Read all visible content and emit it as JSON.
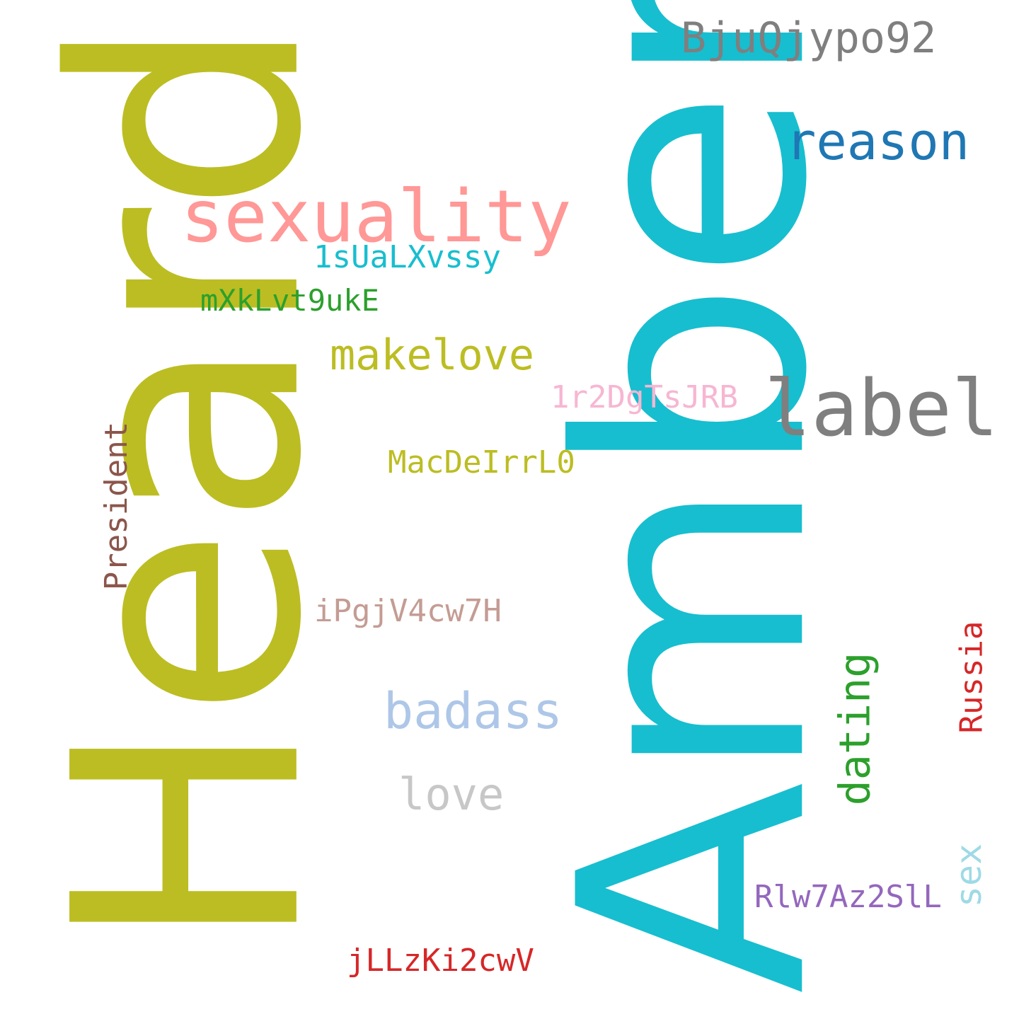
{
  "words": [
    {
      "id": "heard",
      "text": "Heard",
      "color": "#bcbd22",
      "orientation": "vertical"
    },
    {
      "id": "amber",
      "text": "Amber",
      "color": "#17becf",
      "orientation": "vertical"
    },
    {
      "id": "bjuqjypo92",
      "text": "BjuQjypo92",
      "color": "#7f7f7f",
      "orientation": "horizontal"
    },
    {
      "id": "reason",
      "text": "reason",
      "color": "#1f77b4",
      "orientation": "horizontal"
    },
    {
      "id": "sexuality",
      "text": "sexuality",
      "color": "#ff9896",
      "orientation": "horizontal"
    },
    {
      "id": "1suualxvssy",
      "text": "1sUaLXvssy",
      "color": "#17becf",
      "orientation": "horizontal"
    },
    {
      "id": "mxklvt9uke",
      "text": "mXkLvt9ukE",
      "color": "#2ca02c",
      "orientation": "horizontal"
    },
    {
      "id": "makelove",
      "text": "makelove",
      "color": "#bcbd22",
      "orientation": "horizontal"
    },
    {
      "id": "label",
      "text": "label",
      "color": "#7f7f7f",
      "orientation": "horizontal"
    },
    {
      "id": "1r2dgtsjrb",
      "text": "1r2DgTsJRB",
      "color": "#f7b6d2",
      "orientation": "horizontal"
    },
    {
      "id": "macdeirrl0",
      "text": "MacDeIrrL0",
      "color": "#bcbd22",
      "orientation": "horizontal"
    },
    {
      "id": "president",
      "text": "President",
      "color": "#8c564b",
      "orientation": "vertical"
    },
    {
      "id": "ipgjv4cw7h",
      "text": "iPgjV4cw7H",
      "color": "#c49c94",
      "orientation": "horizontal"
    },
    {
      "id": "badass",
      "text": "badass",
      "color": "#aec7e8",
      "orientation": "horizontal"
    },
    {
      "id": "love",
      "text": "love",
      "color": "#c7c7c7",
      "orientation": "horizontal"
    },
    {
      "id": "dating",
      "text": "dating",
      "color": "#2ca02c",
      "orientation": "vertical"
    },
    {
      "id": "russia",
      "text": "Russia",
      "color": "#d62728",
      "orientation": "vertical"
    },
    {
      "id": "sex",
      "text": "sex",
      "color": "#9edae5",
      "orientation": "vertical"
    },
    {
      "id": "rlw7az2sll",
      "text": "Rlw7Az2SlL",
      "color": "#9467bd",
      "orientation": "horizontal"
    },
    {
      "id": "jllzki2cwv",
      "text": "jLLzKi2cwV",
      "color": "#d62728",
      "orientation": "horizontal"
    }
  ]
}
